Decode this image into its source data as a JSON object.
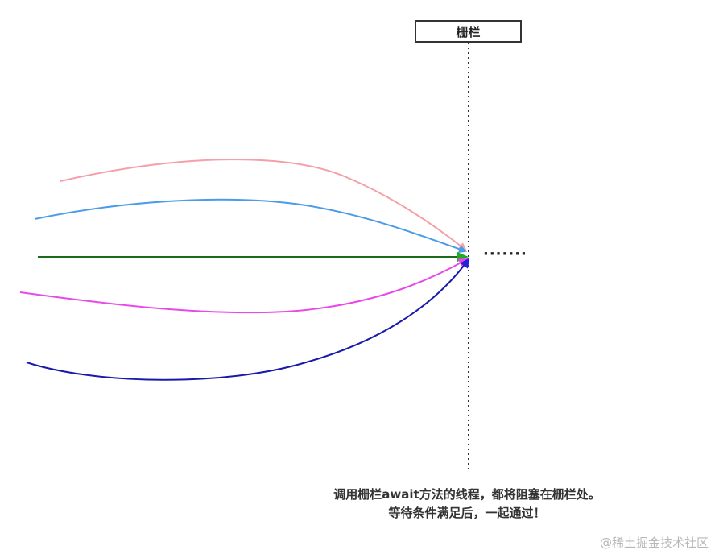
{
  "barrier": {
    "label": "栅栏",
    "line_color": "#333333"
  },
  "threads": [
    {
      "color": "#f4a0a8",
      "shape": "arc-high"
    },
    {
      "color": "#4a9be8",
      "shape": "arc-mid"
    },
    {
      "color": "#1a6b1a",
      "shape": "straight",
      "arrow_color": "#22aa22"
    },
    {
      "color": "#e84ae8",
      "shape": "arc-low"
    },
    {
      "color": "#1a1aaa",
      "shape": "arc-bottom",
      "arrow_color": "#2222dd"
    }
  ],
  "continuation": "·······",
  "caption": {
    "line1": "调用栅栏await方法的线程，都将阻塞在栅栏处。",
    "line2": "等待条件满足后，一起通过！"
  },
  "watermark": "@稀土掘金技术社区"
}
